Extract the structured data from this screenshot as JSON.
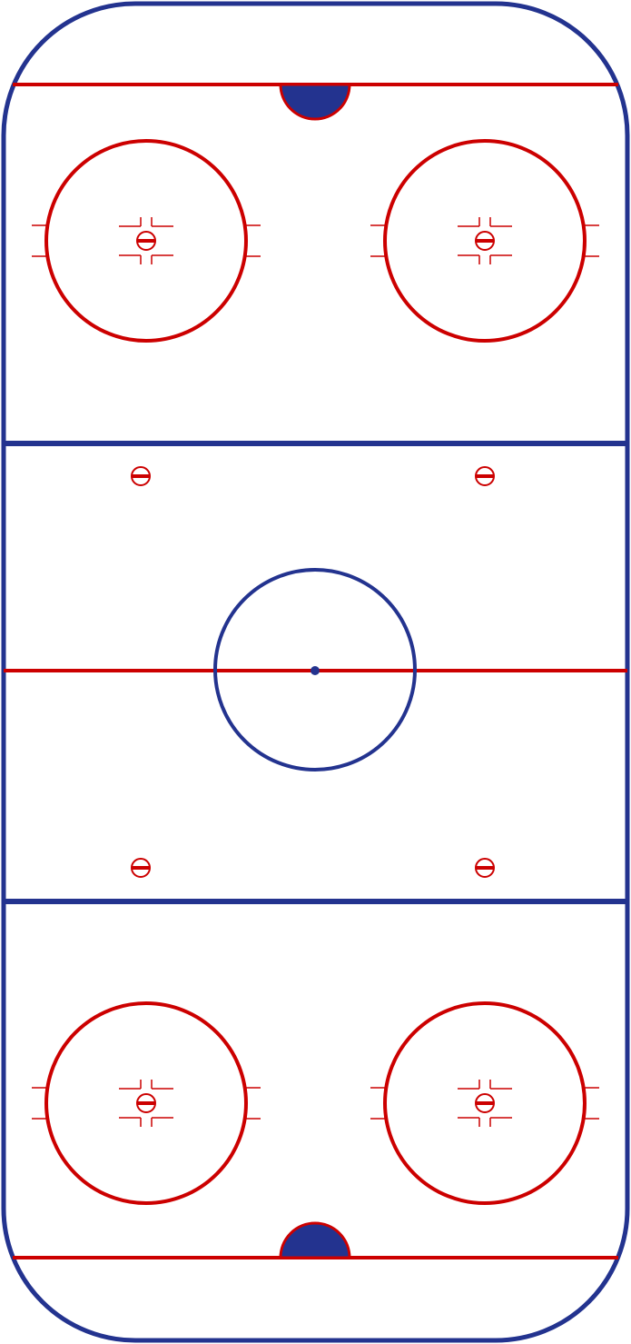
{
  "rink": {
    "colors": {
      "ice": "#ffffff",
      "blue": "#23338f",
      "red": "#cc0000"
    },
    "markings": [
      "boards",
      "goal-line-top",
      "goal-line-bottom",
      "goal-crease-top",
      "goal-crease-bottom",
      "blue-line-top",
      "blue-line-bottom",
      "center-red-line",
      "center-ice-circle",
      "center-ice-spot",
      "faceoff-circle-x4",
      "faceoff-spot-x8"
    ]
  }
}
